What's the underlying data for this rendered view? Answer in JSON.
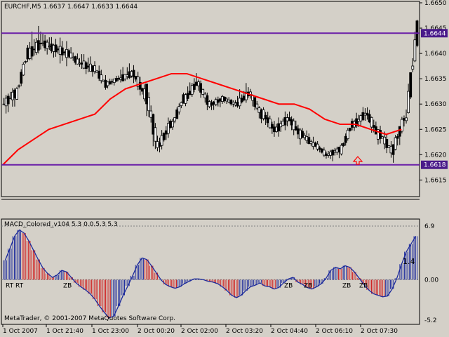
{
  "colors": {
    "background": "#d4d0c8",
    "plot_bg": "#d4d0c8",
    "candle": "#000000",
    "ma_line": "#ff0000",
    "level_line": "#6a1fa8",
    "level_label_bg": "#4a1a8a",
    "level_label_text": "#ffffff",
    "macd_blue": "#1c2a9c",
    "macd_red": "#d02020",
    "macd_line": "#1c2a9c",
    "arrow": "#ff0000",
    "grid": "#808080"
  },
  "header": {
    "title": "EURCHF,M5  1.6637 1.6647 1.6633 1.6644"
  },
  "indicator": {
    "title": "MACD_Colored_v104 5.3 0.0.5.3 5.3",
    "value_label": "1.4",
    "copyright": "MetaTrader, © 2001-2007 MetaQuotes Software Corp."
  },
  "levels": {
    "upper": {
      "label": "1.6644",
      "value": 1.6644
    },
    "lower": {
      "label": "1.6618",
      "value": 1.6618
    }
  },
  "chart_data": [
    {
      "type": "candlestick",
      "title": "EURCHF,M5",
      "ylim": [
        1.6612,
        1.665
      ],
      "price_ticks": [
        "1.6650",
        "1.6645",
        "1.6640",
        "1.6635",
        "1.6630",
        "1.6625",
        "1.6620",
        "1.6615"
      ],
      "price_tick_values": [
        1.665,
        1.6645,
        1.664,
        1.6635,
        1.663,
        1.6625,
        1.662,
        1.6615
      ],
      "time_ticks": [
        "1 Oct 2007",
        "1 Oct 21:40",
        "1 Oct 23:00",
        "2 Oct 00:20",
        "2 Oct 02:00",
        "2 Oct 03:20",
        "2 Oct 04:40",
        "2 Oct 06:10",
        "2 Oct 07:30"
      ],
      "series": [
        {
          "name": "",
          "type": "ma",
          "values": [
            1.6618,
            1.6621,
            1.6623,
            1.6625,
            1.6626,
            1.6627,
            1.6628,
            1.6631,
            1.6633,
            1.6634,
            1.6635,
            1.6636,
            1.6636,
            1.6635,
            1.6634,
            1.6633,
            1.6632,
            1.6631,
            1.663,
            1.663,
            1.6629,
            1.6627,
            1.6626,
            1.6626,
            1.6625,
            1.6624,
            1.6625
          ]
        }
      ],
      "ohlc": [
        [
          1.663,
          1.6634,
          1.6627,
          1.6632
        ],
        [
          1.6632,
          1.6641,
          1.6631,
          1.664
        ],
        [
          1.664,
          1.6647,
          1.6638,
          1.6642
        ],
        [
          1.6642,
          1.6645,
          1.6639,
          1.6641
        ],
        [
          1.6641,
          1.6644,
          1.6637,
          1.664
        ],
        [
          1.664,
          1.6642,
          1.6637,
          1.6638
        ],
        [
          1.6638,
          1.6641,
          1.6635,
          1.6637
        ],
        [
          1.6637,
          1.6639,
          1.6633,
          1.6634
        ],
        [
          1.6634,
          1.6636,
          1.6633,
          1.6635
        ],
        [
          1.6635,
          1.6639,
          1.6634,
          1.6636
        ],
        [
          1.6636,
          1.6638,
          1.663,
          1.6632
        ],
        [
          1.6632,
          1.6634,
          1.6618,
          1.6622
        ],
        [
          1.6622,
          1.6628,
          1.662,
          1.6626
        ],
        [
          1.6626,
          1.6632,
          1.6625,
          1.6631
        ],
        [
          1.6631,
          1.6637,
          1.663,
          1.6634
        ],
        [
          1.6634,
          1.6635,
          1.6628,
          1.663
        ],
        [
          1.663,
          1.6632,
          1.6628,
          1.6631
        ],
        [
          1.6631,
          1.6632,
          1.6629,
          1.663
        ],
        [
          1.663,
          1.6635,
          1.6629,
          1.6632
        ],
        [
          1.6632,
          1.6633,
          1.6626,
          1.6628
        ],
        [
          1.6628,
          1.663,
          1.6623,
          1.6625
        ],
        [
          1.6625,
          1.6629,
          1.6623,
          1.6627
        ],
        [
          1.6627,
          1.6629,
          1.6622,
          1.6624
        ],
        [
          1.6624,
          1.6626,
          1.6621,
          1.6622
        ],
        [
          1.6622,
          1.6623,
          1.6619,
          1.662
        ],
        [
          1.662,
          1.6622,
          1.6618,
          1.6621
        ],
        [
          1.6621,
          1.6627,
          1.662,
          1.6626
        ],
        [
          1.6626,
          1.663,
          1.6624,
          1.6628
        ],
        [
          1.6628,
          1.663,
          1.6622,
          1.6624
        ],
        [
          1.6624,
          1.6626,
          1.6619,
          1.6621
        ],
        [
          1.6621,
          1.6628,
          1.6618,
          1.6627
        ],
        [
          1.6627,
          1.6647,
          1.6626,
          1.6644
        ]
      ]
    },
    {
      "type": "histogram",
      "title": "MACD_Colored_v104 5.3 0.0.5.3 5.3",
      "ylim": [
        -5.2,
        6.9
      ],
      "ticks": [
        "6.9",
        "0.00",
        "-5.2"
      ],
      "tick_values": [
        6.9,
        0.0,
        -5.2
      ],
      "annotations": [
        "RT",
        "RT",
        "ZB",
        "ZB",
        "ZB",
        "ZB",
        "ZB"
      ],
      "values": [
        2.5,
        4.0,
        5.6,
        6.4,
        6.0,
        5.0,
        3.8,
        2.6,
        1.5,
        0.8,
        0.3,
        0.6,
        1.2,
        1.0,
        0.3,
        -0.4,
        -0.9,
        -1.3,
        -1.8,
        -2.5,
        -3.4,
        -4.2,
        -4.9,
        -4.7,
        -3.4,
        -2.0,
        -0.8,
        0.5,
        1.9,
        2.8,
        2.6,
        1.8,
        0.9,
        0.0,
        -0.6,
        -0.9,
        -1.1,
        -0.9,
        -0.5,
        -0.2,
        0.1,
        0.1,
        0.0,
        -0.2,
        -0.3,
        -0.5,
        -0.9,
        -1.4,
        -2.0,
        -2.3,
        -2.0,
        -1.4,
        -0.9,
        -0.7,
        -0.4,
        -0.8,
        -0.9,
        -1.2,
        -1.0,
        -0.4,
        0.1,
        0.3,
        -0.3,
        -0.6,
        -1.0,
        -1.2,
        -0.9,
        -0.5,
        0.2,
        1.2,
        1.6,
        1.4,
        1.8,
        1.6,
        1.0,
        0.2,
        -0.6,
        -1.3,
        -1.8,
        -2.0,
        -2.2,
        -2.1,
        -1.2,
        0.2,
        2.0,
        3.6,
        4.6,
        5.6
      ]
    }
  ]
}
